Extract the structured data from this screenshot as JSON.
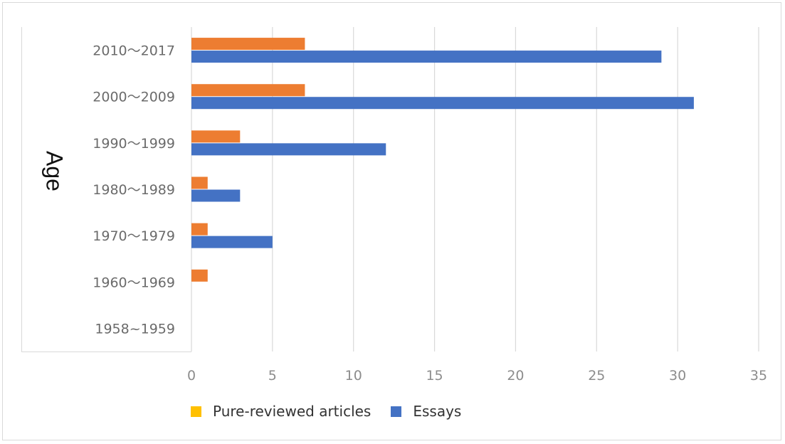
{
  "chart_data": {
    "type": "bar",
    "orientation": "horizontal",
    "ylabel": "Age",
    "xlabel": "",
    "xlim": [
      0,
      35
    ],
    "xticks": [
      0,
      5,
      10,
      15,
      20,
      25,
      30,
      35
    ],
    "categories": [
      "2010～2017",
      "2000～2009",
      "1990～1999",
      "1980～1989",
      "1970～1979",
      "1960～1969",
      "1958~1959"
    ],
    "series": [
      {
        "name": "Pure-reviewed articles",
        "color": "#ed7d31",
        "values": [
          7,
          7,
          3,
          1,
          1,
          1,
          0
        ]
      },
      {
        "name": "Essays",
        "color": "#4472c4",
        "values": [
          29,
          31,
          12,
          3,
          5,
          0,
          0
        ]
      }
    ],
    "grid": "vertical",
    "legend": {
      "position": "bottom-left",
      "entries": [
        {
          "label": "Pure-reviewed articles",
          "color": "#ffc000"
        },
        {
          "label": "Essays",
          "color": "#4472c4"
        }
      ]
    }
  }
}
